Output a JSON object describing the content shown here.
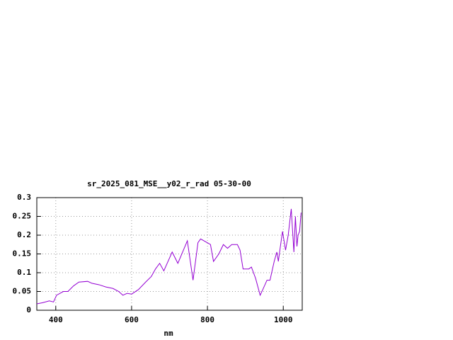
{
  "chart_data": {
    "type": "line",
    "title": "sr_2025_081_MSE__y02_r_rad 05-30-00",
    "x_label": "nm",
    "xlim": [
      350,
      1050
    ],
    "xticks": [
      400,
      600,
      800,
      1000
    ],
    "ylim": [
      0,
      0.3
    ],
    "yticks": [
      0,
      0.05,
      0.1,
      0.15,
      0.2,
      0.25,
      0.3
    ],
    "grid": true,
    "series": [
      {
        "color": "#9400d3",
        "x": [
          350,
          365,
          383,
          394,
          402,
          420,
          432,
          447,
          461,
          484,
          495,
          514,
          532,
          551,
          566,
          577,
          588,
          600,
          618,
          637,
          652,
          663,
          674,
          685,
          707,
          722,
          747,
          762,
          775,
          782,
          808,
          816,
          830,
          842,
          853,
          864,
          879,
          886,
          894,
          909,
          916,
          927,
          939,
          946,
          957,
          965,
          976,
          983,
          987,
          991,
          998,
          1006,
          1013,
          1021,
          1028,
          1032,
          1036,
          1039,
          1043,
          1047
        ],
        "values": [
          0.017,
          0.02,
          0.025,
          0.022,
          0.04,
          0.05,
          0.05,
          0.065,
          0.075,
          0.077,
          0.072,
          0.068,
          0.062,
          0.058,
          0.05,
          0.04,
          0.045,
          0.043,
          0.055,
          0.075,
          0.09,
          0.11,
          0.125,
          0.105,
          0.155,
          0.125,
          0.185,
          0.08,
          0.18,
          0.19,
          0.175,
          0.13,
          0.15,
          0.175,
          0.165,
          0.175,
          0.175,
          0.16,
          0.11,
          0.11,
          0.115,
          0.085,
          0.04,
          0.055,
          0.08,
          0.08,
          0.13,
          0.155,
          0.13,
          0.16,
          0.21,
          0.16,
          0.2,
          0.27,
          0.155,
          0.25,
          0.17,
          0.2,
          0.21,
          0.26
        ]
      }
    ]
  }
}
